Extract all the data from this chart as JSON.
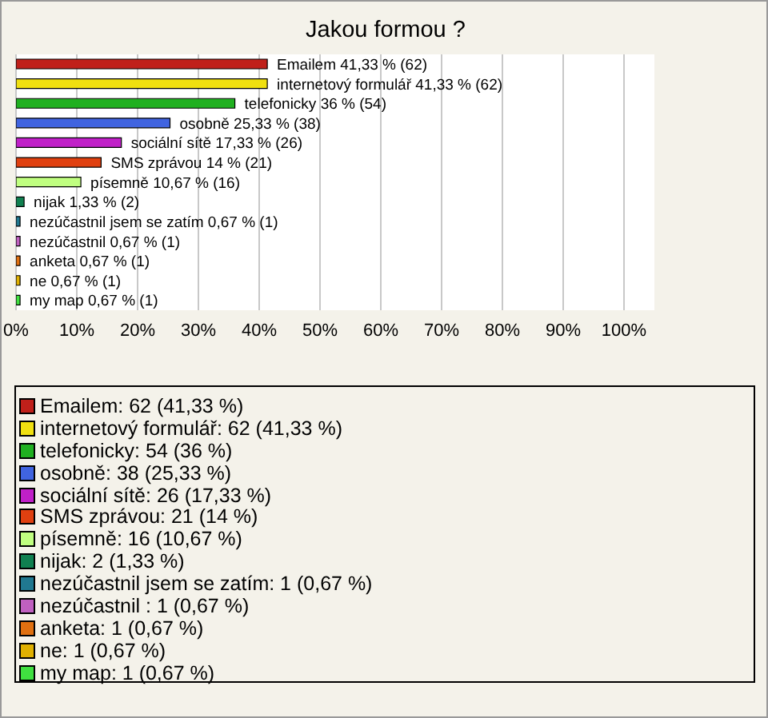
{
  "chart_data": {
    "type": "bar",
    "orientation": "horizontal",
    "stacked": true,
    "title": "Jakou formou ?",
    "categories": [
      null,
      null,
      null,
      null,
      null,
      null,
      null,
      null,
      null,
      null,
      null,
      null,
      null
    ],
    "series": [
      {
        "name": "Emailem: 62 (41,33 %)",
        "color": "#c0201a",
        "values": [
          41.33,
          null,
          null,
          null,
          null,
          null,
          null,
          null,
          null,
          null,
          null,
          null,
          null
        ],
        "value_labels": [
          "Emailem 41,33 % (62)",
          null,
          null,
          null,
          null,
          null,
          null,
          null,
          null,
          null,
          null,
          null,
          null
        ]
      },
      {
        "name": "internetový formulář: 62 (41,33 %)",
        "color": "#f0e010",
        "values": [
          null,
          41.33,
          null,
          null,
          null,
          null,
          null,
          null,
          null,
          null,
          null,
          null,
          null
        ],
        "value_labels": [
          null,
          "internetový formulář 41,33 % (62)",
          null,
          null,
          null,
          null,
          null,
          null,
          null,
          null,
          null,
          null,
          null
        ]
      },
      {
        "name": "telefonicky: 54 (36 %)",
        "color": "#20b020",
        "values": [
          null,
          null,
          36,
          null,
          null,
          null,
          null,
          null,
          null,
          null,
          null,
          null,
          null
        ],
        "value_labels": [
          null,
          null,
          "telefonicky 36 % (54)",
          null,
          null,
          null,
          null,
          null,
          null,
          null,
          null,
          null,
          null
        ]
      },
      {
        "name": "osobně: 38 (25,33 %)",
        "color": "#4064e0",
        "values": [
          null,
          null,
          null,
          25.33,
          null,
          null,
          null,
          null,
          null,
          null,
          null,
          null,
          null
        ],
        "value_labels": [
          null,
          null,
          null,
          "osobně 25,33 % (38)",
          null,
          null,
          null,
          null,
          null,
          null,
          null,
          null,
          null
        ]
      },
      {
        "name": "sociální sítě: 26 (17,33 %)",
        "color": "#c020c8",
        "values": [
          null,
          null,
          null,
          null,
          17.33,
          null,
          null,
          null,
          null,
          null,
          null,
          null,
          null
        ],
        "value_labels": [
          null,
          null,
          null,
          null,
          "sociální sítě 17,33 % (26)",
          null,
          null,
          null,
          null,
          null,
          null,
          null,
          null
        ]
      },
      {
        "name": "SMS zprávou: 21 (14 %)",
        "color": "#e04010",
        "values": [
          null,
          null,
          null,
          null,
          null,
          14,
          null,
          null,
          null,
          null,
          null,
          null,
          null
        ],
        "value_labels": [
          null,
          null,
          null,
          null,
          null,
          "SMS zprávou 14 % (21)",
          null,
          null,
          null,
          null,
          null,
          null,
          null
        ]
      },
      {
        "name": "písemně: 16 (10,67 %)",
        "color": "#c0ff80",
        "values": [
          null,
          null,
          null,
          null,
          null,
          null,
          10.67,
          null,
          null,
          null,
          null,
          null,
          null
        ],
        "value_labels": [
          null,
          null,
          null,
          null,
          null,
          null,
          "písemně 10,67 % (16)",
          null,
          null,
          null,
          null,
          null,
          null
        ]
      },
      {
        "name": "nijak: 2 (1,33 %)",
        "color": "#108050",
        "values": [
          null,
          null,
          null,
          null,
          null,
          null,
          null,
          1.33,
          null,
          null,
          null,
          null,
          null
        ],
        "value_labels": [
          null,
          null,
          null,
          null,
          null,
          null,
          null,
          "nijak 1,33 % (2)",
          null,
          null,
          null,
          null,
          null
        ]
      },
      {
        "name": "nezúčastnil jsem se zatím: 1 (0,67 %)",
        "color": "#207890",
        "values": [
          null,
          null,
          null,
          null,
          null,
          null,
          null,
          null,
          0.67,
          null,
          null,
          null,
          null
        ],
        "value_labels": [
          null,
          null,
          null,
          null,
          null,
          null,
          null,
          null,
          "nezúčastnil jsem se zatím 0,67 % (1)",
          null,
          null,
          null,
          null
        ]
      },
      {
        "name": "nezúčastnil : 1 (0,67 %)",
        "color": "#c060c0",
        "values": [
          null,
          null,
          null,
          null,
          null,
          null,
          null,
          null,
          null,
          0.67,
          null,
          null,
          null
        ],
        "value_labels": [
          null,
          null,
          null,
          null,
          null,
          null,
          null,
          null,
          null,
          "nezúčastnil  0,67 % (1)",
          null,
          null,
          null
        ]
      },
      {
        "name": "anketa: 1 (0,67 %)",
        "color": "#e07010",
        "values": [
          null,
          null,
          null,
          null,
          null,
          null,
          null,
          null,
          null,
          null,
          0.67,
          null,
          null
        ],
        "value_labels": [
          null,
          null,
          null,
          null,
          null,
          null,
          null,
          null,
          null,
          null,
          "anketa 0,67 % (1)",
          null,
          null
        ]
      },
      {
        "name": "ne: 1 (0,67 %)",
        "color": "#e0b000",
        "values": [
          null,
          null,
          null,
          null,
          null,
          null,
          null,
          null,
          null,
          null,
          null,
          0.67,
          null
        ],
        "value_labels": [
          null,
          null,
          null,
          null,
          null,
          null,
          null,
          null,
          null,
          null,
          null,
          "ne 0,67 % (1)",
          null
        ]
      },
      {
        "name": "my map: 1 (0,67 %)",
        "color": "#40e040",
        "values": [
          null,
          null,
          null,
          null,
          null,
          null,
          null,
          null,
          null,
          null,
          null,
          null,
          0.67
        ],
        "value_labels": [
          null,
          null,
          null,
          null,
          null,
          null,
          null,
          null,
          null,
          null,
          null,
          null,
          "my map 0,67 % (1)"
        ]
      }
    ],
    "xlim": [
      0,
      105
    ],
    "xticks": [
      {
        "value": 0,
        "label": "0%"
      },
      {
        "value": 10,
        "label": "10%"
      },
      {
        "value": 20,
        "label": "20%"
      },
      {
        "value": 30,
        "label": "30%"
      },
      {
        "value": 40,
        "label": "40%"
      },
      {
        "value": 50,
        "label": "50%"
      },
      {
        "value": 60,
        "label": "60%"
      },
      {
        "value": 70,
        "label": "70%"
      },
      {
        "value": 80,
        "label": "80%"
      },
      {
        "value": 90,
        "label": "90%"
      },
      {
        "value": 100,
        "label": "100%"
      }
    ],
    "grid": "x",
    "legend": "bottom"
  }
}
